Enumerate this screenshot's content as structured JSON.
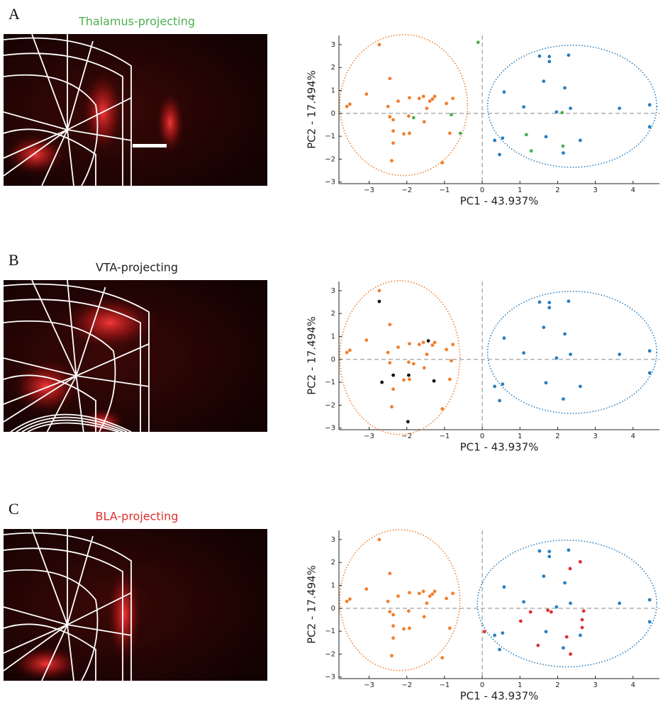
{
  "chart_data": [
    {
      "type": "scatter",
      "panel": "A",
      "image_title": "Thalamus-projecting",
      "title_color": "#4caf50",
      "x_label": "PC1 - 43.937%",
      "y_label": "PC2 - 17.494%",
      "xlim": [
        -3.8,
        4.7
      ],
      "ylim": [
        -3.07,
        3.4
      ],
      "xticks": [
        {
          "value": -3,
          "label": "−3"
        },
        {
          "value": -2,
          "label": "−2"
        },
        {
          "value": -1,
          "label": "−1"
        },
        0,
        1,
        2,
        3,
        4
      ],
      "yticks": [
        {
          "value": -3,
          "label": "−3"
        },
        {
          "value": -2,
          "label": "−2"
        },
        {
          "value": -1,
          "label": "−1"
        },
        0,
        1,
        2,
        3
      ],
      "series": [
        {
          "color": "#f07f2e",
          "x": [
            -2.73,
            -2.45,
            -3.07,
            -3.51,
            -3.59,
            -2.5,
            -2.23,
            -2.45,
            -2.36,
            -1.93,
            -1.67,
            -1.56,
            -1.39,
            -1.32,
            -1.26,
            -1.47,
            -1.95,
            -2.08,
            -1.93,
            -2.36,
            -2.36,
            -2.4,
            -1.54,
            -0.95,
            -0.78,
            -0.86,
            -1.06
          ],
          "y": [
            3.0,
            1.52,
            0.84,
            0.4,
            0.3,
            0.3,
            0.53,
            -0.15,
            -0.28,
            0.68,
            0.65,
            0.74,
            0.53,
            0.62,
            0.74,
            0.22,
            -0.12,
            -0.9,
            -0.87,
            -0.77,
            -1.3,
            -2.07,
            -0.37,
            0.43,
            0.65,
            -0.87,
            -2.16
          ]
        },
        {
          "color": "#2a7fbf",
          "x": [
            1.52,
            1.78,
            1.78,
            2.29,
            1.63,
            2.19,
            0.58,
            1.1,
            1.97,
            2.34,
            3.64,
            4.44,
            4.44,
            1.69,
            2.6,
            0.54,
            0.33,
            0.46,
            2.15
          ],
          "y": [
            2.5,
            2.48,
            2.26,
            2.54,
            1.4,
            1.11,
            0.93,
            0.28,
            0.06,
            0.22,
            0.22,
            0.37,
            -0.59,
            -1.02,
            -1.18,
            -1.08,
            -1.18,
            -1.8,
            -1.73
          ]
        },
        {
          "color": "#4caf50",
          "x": [
            -0.11,
            -1.82,
            -0.82,
            -0.58,
            1.17,
            1.3,
            2.12,
            2.14
          ],
          "y": [
            3.1,
            -0.19,
            -0.06,
            -0.87,
            -0.93,
            -1.64,
            0.03,
            -1.43
          ]
        }
      ]
    },
    {
      "type": "scatter",
      "panel": "B",
      "image_title": "VTA-projecting",
      "title_color": "#222222",
      "x_label": "PC1 - 43.937%",
      "y_label": "PC2 - 17.494%",
      "xlim": [
        -3.8,
        4.7
      ],
      "ylim": [
        -3.07,
        3.4
      ],
      "xticks": [
        {
          "value": -3,
          "label": "−3"
        },
        {
          "value": -2,
          "label": "−2"
        },
        {
          "value": -1,
          "label": "−1"
        },
        0,
        1,
        2,
        3,
        4
      ],
      "yticks": [
        {
          "value": -3,
          "label": "−3"
        },
        {
          "value": -2,
          "label": "−2"
        },
        {
          "value": -1,
          "label": "−1"
        },
        0,
        1,
        2,
        3
      ],
      "series": [
        {
          "color": "#f07f2e",
          "x": [
            -2.73,
            -2.45,
            -3.07,
            -3.51,
            -3.59,
            -2.5,
            -2.23,
            -2.45,
            -1.93,
            -1.67,
            -1.56,
            -1.32,
            -1.26,
            -1.47,
            -1.95,
            -2.08,
            -1.93,
            -2.36,
            -2.4,
            -1.54,
            -0.95,
            -0.78,
            -0.86,
            -1.06,
            -1.82,
            -0.82
          ],
          "y": [
            3.0,
            1.52,
            0.84,
            0.4,
            0.3,
            0.3,
            0.53,
            -0.15,
            0.68,
            0.65,
            0.74,
            0.62,
            0.74,
            0.22,
            -0.12,
            -0.9,
            -0.87,
            -1.3,
            -2.07,
            -0.37,
            0.43,
            0.65,
            -0.87,
            -2.16,
            -0.19,
            -0.06
          ]
        },
        {
          "color": "#2a7fbf",
          "x": [
            1.52,
            1.78,
            1.78,
            2.29,
            1.63,
            2.19,
            0.58,
            1.1,
            1.97,
            2.34,
            3.64,
            4.44,
            4.44,
            1.69,
            2.6,
            0.54,
            0.33,
            0.46,
            2.15
          ],
          "y": [
            2.5,
            2.48,
            2.26,
            2.54,
            1.4,
            1.11,
            0.93,
            0.28,
            0.06,
            0.22,
            0.22,
            0.37,
            -0.59,
            -1.02,
            -1.18,
            -1.08,
            -1.18,
            -1.8,
            -1.73
          ]
        },
        {
          "color": "#111111",
          "x": [
            -2.73,
            -1.43,
            -2.36,
            -1.95,
            -2.66,
            -1.28,
            -1.97
          ],
          "y": [
            2.53,
            0.81,
            -0.69,
            -0.69,
            -1.0,
            -0.94,
            -2.72
          ]
        }
      ]
    },
    {
      "type": "scatter",
      "panel": "C",
      "image_title": "BLA-projecting",
      "title_color": "#e0302f",
      "x_label": "PC1 - 43.937%",
      "y_label": "PC2 - 17.494%",
      "xlim": [
        -3.8,
        4.7
      ],
      "ylim": [
        -3.07,
        3.4
      ],
      "xticks": [
        {
          "value": -3,
          "label": "−3"
        },
        {
          "value": -2,
          "label": "−2"
        },
        {
          "value": -1,
          "label": "−1"
        },
        0,
        1,
        2,
        3,
        4
      ],
      "yticks": [
        {
          "value": -3,
          "label": "−3"
        },
        {
          "value": -2,
          "label": "−2"
        },
        {
          "value": -1,
          "label": "−1"
        },
        0,
        1,
        2,
        3
      ],
      "series": [
        {
          "color": "#f07f2e",
          "x": [
            -2.73,
            -2.45,
            -3.07,
            -3.51,
            -3.59,
            -2.5,
            -2.23,
            -2.45,
            -2.36,
            -1.93,
            -1.67,
            -1.56,
            -1.39,
            -1.32,
            -1.26,
            -1.47,
            -1.95,
            -2.08,
            -1.93,
            -2.36,
            -2.36,
            -2.4,
            -1.54,
            -0.95,
            -0.78,
            -0.86,
            -1.06
          ],
          "y": [
            3.0,
            1.52,
            0.84,
            0.4,
            0.3,
            0.3,
            0.53,
            -0.15,
            -0.28,
            0.68,
            0.65,
            0.74,
            0.53,
            0.62,
            0.74,
            0.22,
            -0.12,
            -0.9,
            -0.87,
            -0.77,
            -1.3,
            -2.07,
            -0.37,
            0.43,
            0.65,
            -0.87,
            -2.16
          ]
        },
        {
          "color": "#2a7fbf",
          "x": [
            1.52,
            1.78,
            1.78,
            2.29,
            1.63,
            2.19,
            0.58,
            1.1,
            1.97,
            2.34,
            3.64,
            4.44,
            4.44,
            1.69,
            2.6,
            0.54,
            0.33,
            0.46,
            2.15
          ],
          "y": [
            2.5,
            2.48,
            2.26,
            2.54,
            1.4,
            1.11,
            0.93,
            0.28,
            0.06,
            0.22,
            0.22,
            0.37,
            -0.59,
            -1.02,
            -1.18,
            -1.08,
            -1.18,
            -1.8,
            -1.73
          ]
        },
        {
          "color": "#e0302f",
          "x": [
            2.33,
            2.6,
            1.74,
            1.83,
            1.28,
            1.02,
            2.69,
            2.65,
            2.65,
            2.24,
            1.48,
            2.34,
            0.06
          ],
          "y": [
            1.73,
            2.03,
            -0.09,
            -0.16,
            -0.16,
            -0.56,
            -0.12,
            -0.5,
            -0.84,
            -1.25,
            -1.62,
            -2.0,
            -1.02
          ]
        }
      ]
    }
  ]
}
